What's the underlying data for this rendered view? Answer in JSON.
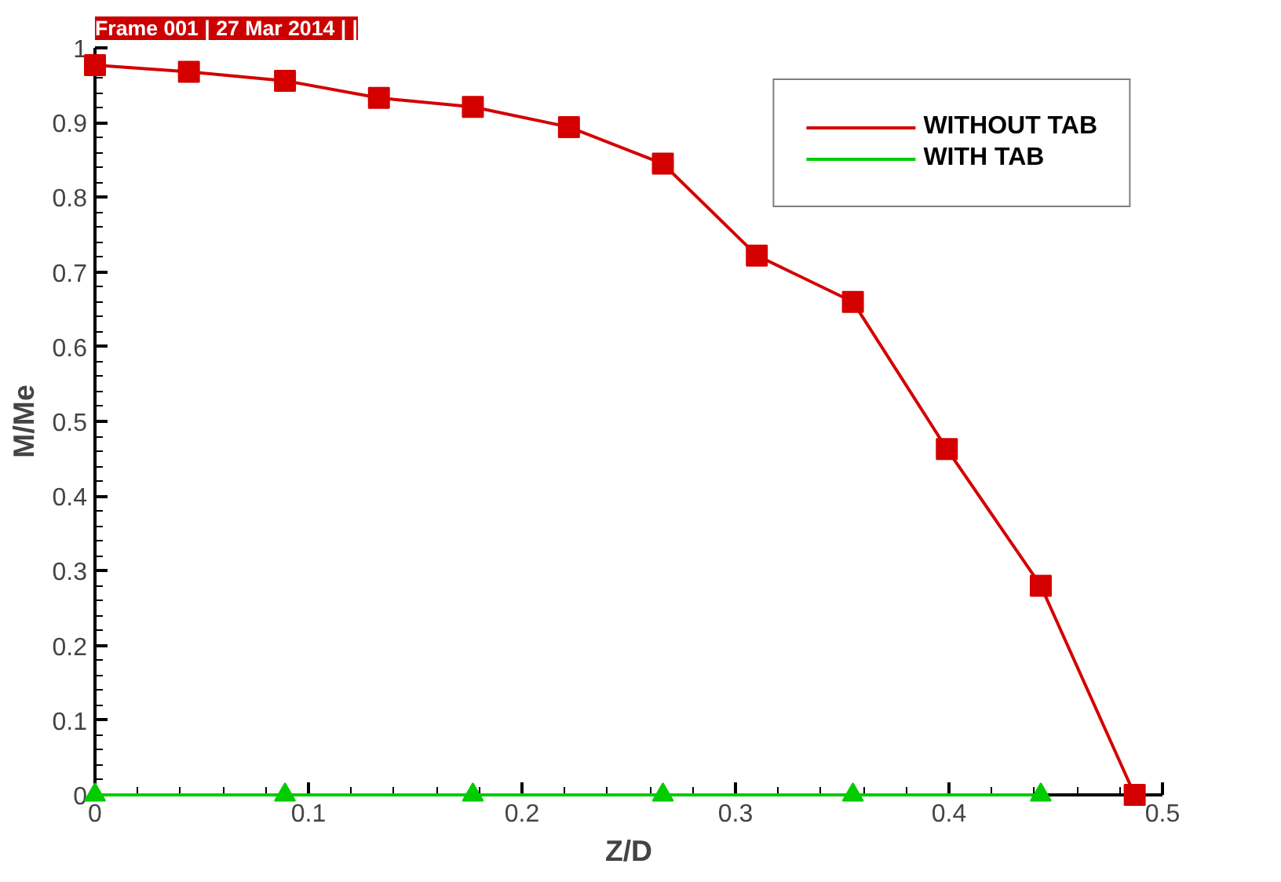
{
  "chart_data": {
    "type": "line",
    "title": "Frame 001 | 27 Mar 2014 | |",
    "xlabel": "Z/D",
    "ylabel": "M/Me",
    "xlim": [
      0,
      0.5
    ],
    "xticks": [
      0,
      0.1,
      0.2,
      0.3,
      0.4,
      0.5
    ],
    "ylim": [
      0,
      1
    ],
    "yticks": [
      0,
      0.1,
      0.2,
      0.3,
      0.4,
      0.5,
      0.6,
      0.7,
      0.8,
      0.9,
      1
    ],
    "grid": false,
    "legend": "top right",
    "series": [
      {
        "name": "WITHOUT TAB",
        "color": "#d40000",
        "marker": "square",
        "x": [
          0,
          0.044,
          0.089,
          0.133,
          0.177,
          0.222,
          0.266,
          0.31,
          0.355,
          0.399,
          0.443,
          0.487
        ],
        "values": [
          0.977,
          0.968,
          0.956,
          0.933,
          0.921,
          0.894,
          0.845,
          0.722,
          0.66,
          0.463,
          0.28,
          0
        ]
      },
      {
        "name": "WITH TAB",
        "color": "#00cc00",
        "marker": "triangle",
        "x": [
          0,
          0.089,
          0.177,
          0.266,
          0.355,
          0.443
        ],
        "values": [
          0,
          0,
          0,
          0,
          0,
          0
        ]
      }
    ]
  }
}
